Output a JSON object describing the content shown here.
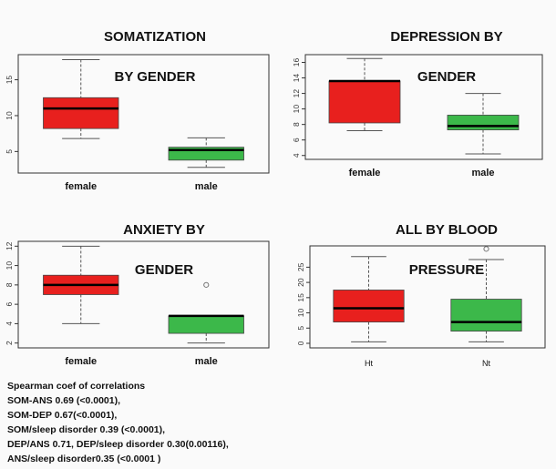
{
  "panels": [
    {
      "title_line1": "SOMATIZATION",
      "title_line2": "BY GENDER"
    },
    {
      "title_line1": "DEPRESSION BY",
      "title_line2": "GENDER"
    },
    {
      "title_line1": "ANXIETY BY",
      "title_line2": "GENDER"
    },
    {
      "title_line1": "ALL BY BLOOD",
      "title_line2": "PRESSURE"
    }
  ],
  "colors": {
    "red": "#e8201e",
    "green": "#3cb84a"
  },
  "chart_data": [
    {
      "type": "box",
      "title": "SOMATIZATION BY GENDER",
      "categories": [
        "female",
        "male"
      ],
      "ylim": [
        2,
        18.5
      ],
      "yticks": [
        5,
        10,
        15
      ],
      "boxes": [
        {
          "category": "female",
          "whisker_low": 6.8,
          "q1": 8.2,
          "median": 11,
          "q3": 12.5,
          "whisker_high": 17.8,
          "color": "#e8201e"
        },
        {
          "category": "male",
          "whisker_low": 2.8,
          "q1": 3.8,
          "median": 5.2,
          "q3": 5.6,
          "whisker_high": 6.9,
          "color": "#3cb84a"
        }
      ],
      "outliers": []
    },
    {
      "type": "box",
      "title": "DEPRESSION BY GENDER",
      "categories": [
        "female",
        "male"
      ],
      "ylim": [
        3.5,
        17
      ],
      "yticks": [
        4,
        6,
        8,
        10,
        12,
        14,
        16
      ],
      "boxes": [
        {
          "category": "female",
          "whisker_low": 7.2,
          "q1": 8.2,
          "median": 13.6,
          "q3": 13.6,
          "whisker_high": 16.5,
          "color": "#e8201e"
        },
        {
          "category": "male",
          "whisker_low": 4.2,
          "q1": 7.3,
          "median": 7.8,
          "q3": 9.2,
          "whisker_high": 12,
          "color": "#3cb84a"
        }
      ],
      "outliers": []
    },
    {
      "type": "box",
      "title": "ANXIETY BY GENDER",
      "categories": [
        "female",
        "male"
      ],
      "ylim": [
        1.5,
        12.5
      ],
      "yticks": [
        2,
        4,
        6,
        8,
        10,
        12
      ],
      "boxes": [
        {
          "category": "female",
          "whisker_low": 4,
          "q1": 7,
          "median": 8,
          "q3": 9,
          "whisker_high": 12,
          "color": "#e8201e"
        },
        {
          "category": "male",
          "whisker_low": 2,
          "q1": 3,
          "median": 4.8,
          "q3": 4.8,
          "whisker_high": 4.8,
          "color": "#3cb84a"
        }
      ],
      "outliers": [
        {
          "category": "male",
          "value": 8
        }
      ]
    },
    {
      "type": "box",
      "title": "ALL BY BLOOD PRESSURE",
      "categories": [
        "Ht",
        "Nt"
      ],
      "ylim": [
        -1.5,
        32
      ],
      "yticks": [
        0,
        5,
        10,
        15,
        20,
        25
      ],
      "boxes": [
        {
          "category": "Ht",
          "whisker_low": 0.5,
          "q1": 7,
          "median": 11.5,
          "q3": 17.5,
          "whisker_high": 28.5,
          "color": "#e8201e"
        },
        {
          "category": "Nt",
          "whisker_low": 0.5,
          "q1": 4,
          "median": 7,
          "q3": 14.5,
          "whisker_high": 27.5,
          "color": "#3cb84a"
        }
      ],
      "outliers": [
        {
          "category": "Nt",
          "value": 31
        }
      ]
    }
  ],
  "notes": {
    "heading": "Spearman coef of correlations",
    "lines": [
      " SOM-ANS 0.69 (<0.0001),",
      " SOM-DEP 0.67(<0.0001),",
      " SOM/sleep disorder 0.39 (<0.0001),",
      " DEP/ANS 0.71, DEP/sleep disorder 0.30(0.00116),",
      " ANS/sleep disorder0.35 (<0.0001 )"
    ]
  }
}
